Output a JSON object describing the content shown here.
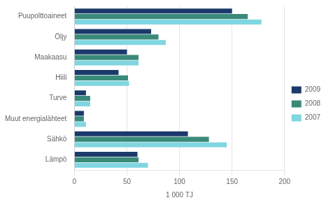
{
  "chart_data": {
    "type": "bar",
    "orientation": "horizontal",
    "categories": [
      "Puupolttoaineet",
      "Öljy",
      "Maakaasu",
      "Hiili",
      "Turve",
      "Muut energialähteet",
      "Sähkö",
      "Lämpö"
    ],
    "series": [
      {
        "name": "2009",
        "color": "#1b3a6b",
        "values": [
          150,
          73,
          50,
          42,
          11,
          9,
          108,
          60
        ]
      },
      {
        "name": "2008",
        "color": "#3a8a7a",
        "values": [
          165,
          80,
          61,
          51,
          15,
          9,
          128,
          61
        ]
      },
      {
        "name": "2007",
        "color": "#7fd6e0",
        "values": [
          178,
          87,
          61,
          52,
          15,
          11,
          145,
          70
        ]
      }
    ],
    "xlabel": "1 000 TJ",
    "xlim": [
      0,
      200
    ],
    "xticks": [
      0,
      50,
      100,
      150,
      200
    ],
    "grid": true,
    "legend": "right"
  }
}
